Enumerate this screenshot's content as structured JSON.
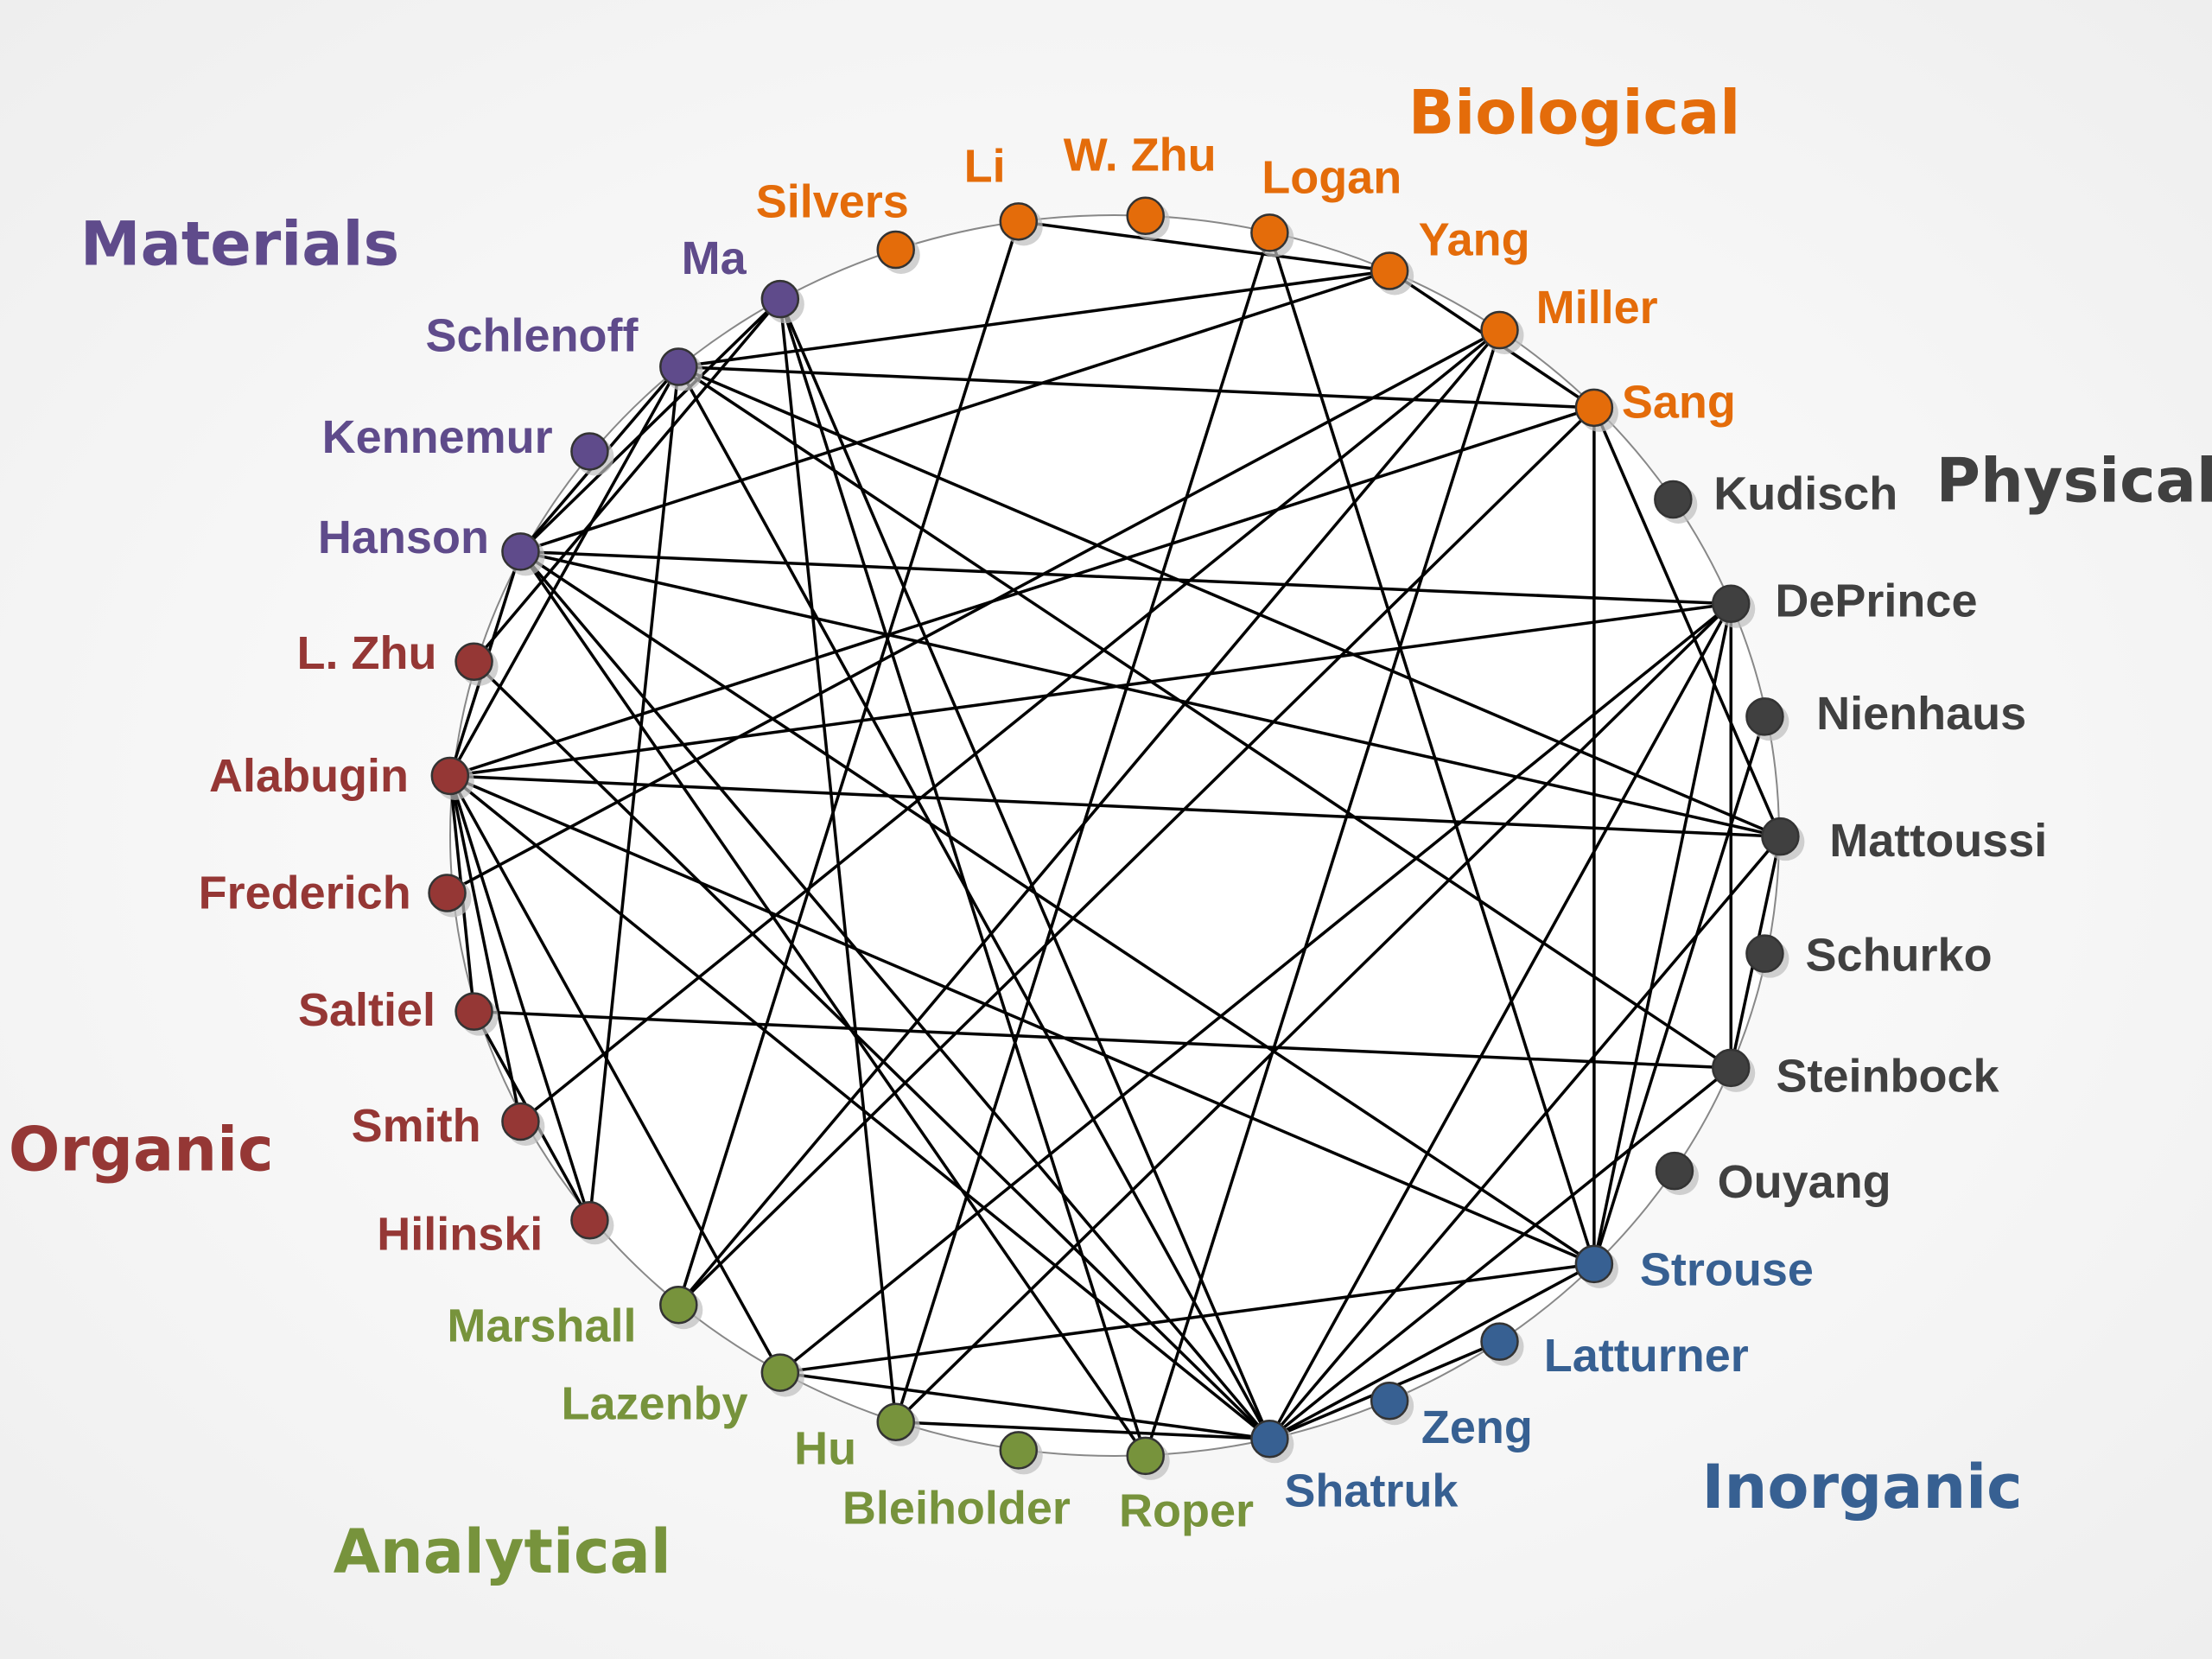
{
  "groups": [
    {
      "name": "Biological",
      "color": "#e46c0a",
      "members": [
        "Silvers",
        "Li",
        "W. Zhu",
        "Logan",
        "Yang",
        "Miller",
        "Sang"
      ]
    },
    {
      "name": "Physical",
      "color": "#404040",
      "members": [
        "Kudisch",
        "DePrince",
        "Nienhaus",
        "Mattoussi",
        "Schurko",
        "Steinbock",
        "Ouyang"
      ]
    },
    {
      "name": "Inorganic",
      "color": "#376092",
      "members": [
        "Strouse",
        "Latturner",
        "Zeng",
        "Shatruk"
      ]
    },
    {
      "name": "Analytical",
      "color": "#77933c",
      "members": [
        "Roper",
        "Bleiholder",
        "Hu",
        "Lazenby",
        "Marshall"
      ]
    },
    {
      "name": "Organic",
      "color": "#953735",
      "members": [
        "Hilinski",
        "Smith",
        "Saltiel",
        "Frederich",
        "Alabugin",
        "L. Zhu"
      ]
    },
    {
      "name": "Materials",
      "color": "#5f4b8b",
      "members": [
        "Hanson",
        "Kennemur",
        "Schlenoff",
        "Ma"
      ]
    }
  ],
  "edges": [
    [
      "Li",
      "Yang"
    ],
    [
      "Li",
      "Marshall"
    ],
    [
      "Logan",
      "Hu"
    ],
    [
      "Logan",
      "Strouse"
    ],
    [
      "Yang",
      "Schlenoff"
    ],
    [
      "Yang",
      "Hanson"
    ],
    [
      "Yang",
      "Sang"
    ],
    [
      "Miller",
      "Marshall"
    ],
    [
      "Miller",
      "Frederich"
    ],
    [
      "Miller",
      "Smith"
    ],
    [
      "Sang",
      "Schlenoff"
    ],
    [
      "Sang",
      "Alabugin"
    ],
    [
      "Sang",
      "Marshall"
    ],
    [
      "Sang",
      "Strouse"
    ],
    [
      "Sang",
      "Mattoussi"
    ],
    [
      "Ma",
      "Hanson"
    ],
    [
      "Ma",
      "L. Zhu"
    ],
    [
      "Ma",
      "Hu"
    ],
    [
      "Ma",
      "Shatruk"
    ],
    [
      "Ma",
      "Roper"
    ],
    [
      "Schlenoff",
      "Hanson"
    ],
    [
      "Schlenoff",
      "Hilinski"
    ],
    [
      "Schlenoff",
      "Alabugin"
    ],
    [
      "Schlenoff",
      "Mattoussi"
    ],
    [
      "Schlenoff",
      "Steinbock"
    ],
    [
      "Schlenoff",
      "Shatruk"
    ],
    [
      "Hanson",
      "DePrince"
    ],
    [
      "Hanson",
      "Mattoussi"
    ],
    [
      "Hanson",
      "Strouse"
    ],
    [
      "Hanson",
      "Shatruk"
    ],
    [
      "Hanson",
      "Roper"
    ],
    [
      "Hanson",
      "Alabugin"
    ],
    [
      "L. Zhu",
      "Shatruk"
    ],
    [
      "Alabugin",
      "DePrince"
    ],
    [
      "Alabugin",
      "Mattoussi"
    ],
    [
      "Alabugin",
      "Strouse"
    ],
    [
      "Alabugin",
      "Shatruk"
    ],
    [
      "Alabugin",
      "Lazenby"
    ],
    [
      "Alabugin",
      "Hilinski"
    ],
    [
      "Alabugin",
      "Saltiel"
    ],
    [
      "Alabugin",
      "Smith"
    ],
    [
      "Saltiel",
      "Steinbock"
    ],
    [
      "Saltiel",
      "Hilinski"
    ],
    [
      "DePrince",
      "Strouse"
    ],
    [
      "DePrince",
      "Shatruk"
    ],
    [
      "DePrince",
      "Hu"
    ],
    [
      "DePrince",
      "Lazenby"
    ],
    [
      "DePrince",
      "Steinbock"
    ],
    [
      "Nienhaus",
      "Strouse"
    ],
    [
      "Mattoussi",
      "Steinbock"
    ],
    [
      "Mattoussi",
      "Shatruk"
    ],
    [
      "Steinbock",
      "Shatruk"
    ],
    [
      "Strouse",
      "Lazenby"
    ],
    [
      "Strouse",
      "Shatruk"
    ],
    [
      "Latturner",
      "Shatruk"
    ],
    [
      "Hu",
      "Shatruk"
    ],
    [
      "Lazenby",
      "Shatruk"
    ],
    [
      "Roper",
      "Miller"
    ]
  ]
}
